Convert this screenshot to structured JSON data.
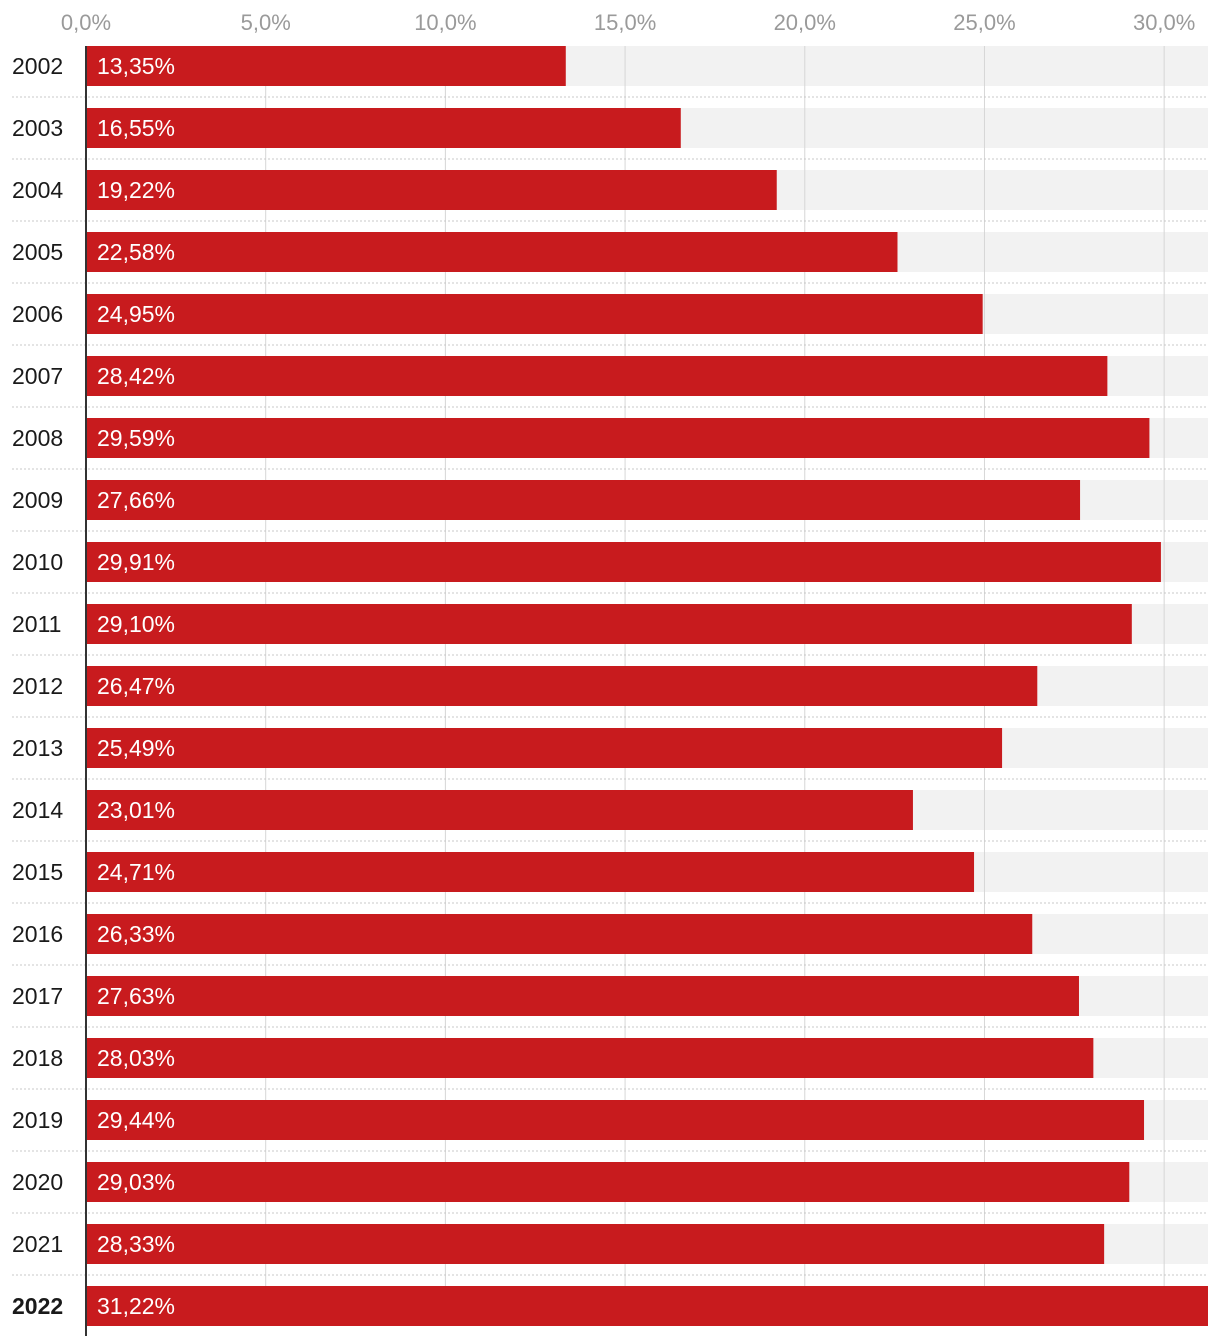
{
  "chart_data": {
    "type": "bar",
    "orientation": "horizontal",
    "categories": [
      "2002",
      "2003",
      "2004",
      "2005",
      "2006",
      "2007",
      "2008",
      "2009",
      "2010",
      "2011",
      "2012",
      "2013",
      "2014",
      "2015",
      "2016",
      "2017",
      "2018",
      "2019",
      "2020",
      "2021",
      "2022"
    ],
    "values": [
      13.35,
      16.55,
      19.22,
      22.58,
      24.95,
      28.42,
      29.59,
      27.66,
      29.91,
      29.1,
      26.47,
      25.49,
      23.01,
      24.71,
      26.33,
      27.63,
      28.03,
      29.44,
      29.03,
      28.33,
      31.22
    ],
    "value_labels": [
      "13,35%",
      "16,55%",
      "19,22%",
      "22,58%",
      "24,95%",
      "28,42%",
      "29,59%",
      "27,66%",
      "29,91%",
      "29,10%",
      "26,47%",
      "25,49%",
      "23,01%",
      "24,71%",
      "26,33%",
      "27,63%",
      "28,03%",
      "29,44%",
      "29,03%",
      "28,33%",
      "31,22%"
    ],
    "xaxis": {
      "ticks": [
        0,
        5,
        10,
        15,
        20,
        25,
        30
      ],
      "tick_labels": [
        "0,0%",
        "5,0%",
        "10,0%",
        "15,0%",
        "20,0%",
        "25,0%",
        "30,0%"
      ],
      "position": "top"
    },
    "xlim": [
      0,
      31.22
    ],
    "highlighted_category": "2022",
    "grid": true,
    "title": "",
    "xlabel": "",
    "ylabel": ""
  },
  "colors": {
    "bar": "#c81b1e",
    "track": "#f2f2f2",
    "grid": "#d6d6d6",
    "axis": "#333333",
    "separator": "#c8c8c8"
  }
}
